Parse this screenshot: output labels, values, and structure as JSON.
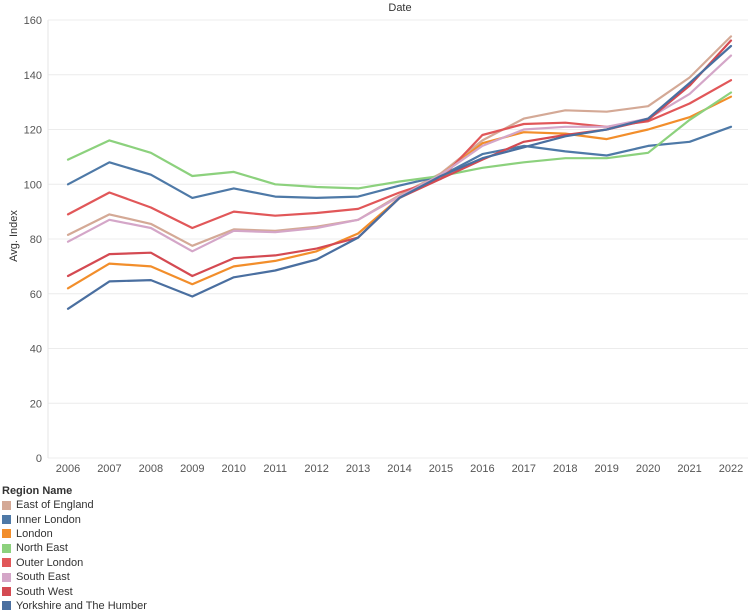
{
  "chart_data": {
    "type": "line",
    "title": "Date",
    "xlabel": "",
    "ylabel": "Avg. Index",
    "ylim": [
      0,
      160
    ],
    "yticks": [
      0,
      20,
      40,
      60,
      80,
      100,
      120,
      140,
      160
    ],
    "grid": true,
    "legend_position": "bottom-left",
    "legend_title": "Region Name",
    "x": [
      "2006",
      "2007",
      "2008",
      "2009",
      "2010",
      "2011",
      "2012",
      "2013",
      "2014",
      "2015",
      "2016",
      "2017",
      "2018",
      "2019",
      "2020",
      "2021",
      "2022"
    ],
    "series": [
      {
        "name": "East of England",
        "color": "#d4a996",
        "values": [
          81.5,
          89.0,
          85.5,
          77.5,
          83.5,
          83.0,
          84.5,
          87.0,
          96.0,
          104.0,
          116.0,
          124.0,
          127.0,
          126.5,
          128.5,
          139.0,
          154.0
        ]
      },
      {
        "name": "Inner London",
        "color": "#4e79a7",
        "values": [
          100.0,
          108.0,
          103.5,
          95.0,
          98.5,
          95.5,
          95.0,
          95.5,
          99.5,
          103.0,
          111.0,
          114.0,
          112.0,
          110.5,
          114.0,
          115.5,
          121.0
        ]
      },
      {
        "name": "London",
        "color": "#f28e2b",
        "values": [
          62.0,
          71.0,
          70.0,
          63.5,
          70.0,
          72.0,
          75.5,
          82.0,
          95.0,
          103.5,
          115.0,
          119.0,
          118.5,
          116.5,
          120.0,
          124.5,
          132.0
        ]
      },
      {
        "name": "North East",
        "color": "#8cd17d",
        "values": [
          109.0,
          116.0,
          111.5,
          103.0,
          104.5,
          100.0,
          99.0,
          98.5,
          101.0,
          103.0,
          106.0,
          108.0,
          109.5,
          109.5,
          111.5,
          123.5,
          133.5
        ]
      },
      {
        "name": "Outer London",
        "color": "#e15759",
        "values": [
          89.0,
          97.0,
          91.5,
          84.0,
          90.0,
          88.5,
          89.5,
          91.0,
          97.0,
          102.0,
          118.0,
          122.0,
          122.5,
          121.0,
          123.0,
          129.5,
          138.0
        ]
      },
      {
        "name": "South East",
        "color": "#d4a6c8",
        "values": [
          79.0,
          87.0,
          84.0,
          75.5,
          83.0,
          82.5,
          84.0,
          87.0,
          95.5,
          103.5,
          114.0,
          120.0,
          121.0,
          121.0,
          124.0,
          133.0,
          147.0
        ]
      },
      {
        "name": "South West",
        "color": "#d44a52",
        "values": [
          66.5,
          74.5,
          75.0,
          66.5,
          73.0,
          74.0,
          76.5,
          80.5,
          95.0,
          102.0,
          109.0,
          115.5,
          118.0,
          120.0,
          123.5,
          136.0,
          152.5
        ]
      },
      {
        "name": "Yorkshire and The Humber",
        "color": "#4a6fa0",
        "values": [
          54.5,
          64.5,
          65.0,
          59.0,
          66.0,
          68.5,
          72.5,
          80.5,
          95.0,
          103.0,
          109.5,
          113.5,
          117.5,
          120.0,
          124.0,
          137.0,
          150.5
        ]
      }
    ]
  }
}
